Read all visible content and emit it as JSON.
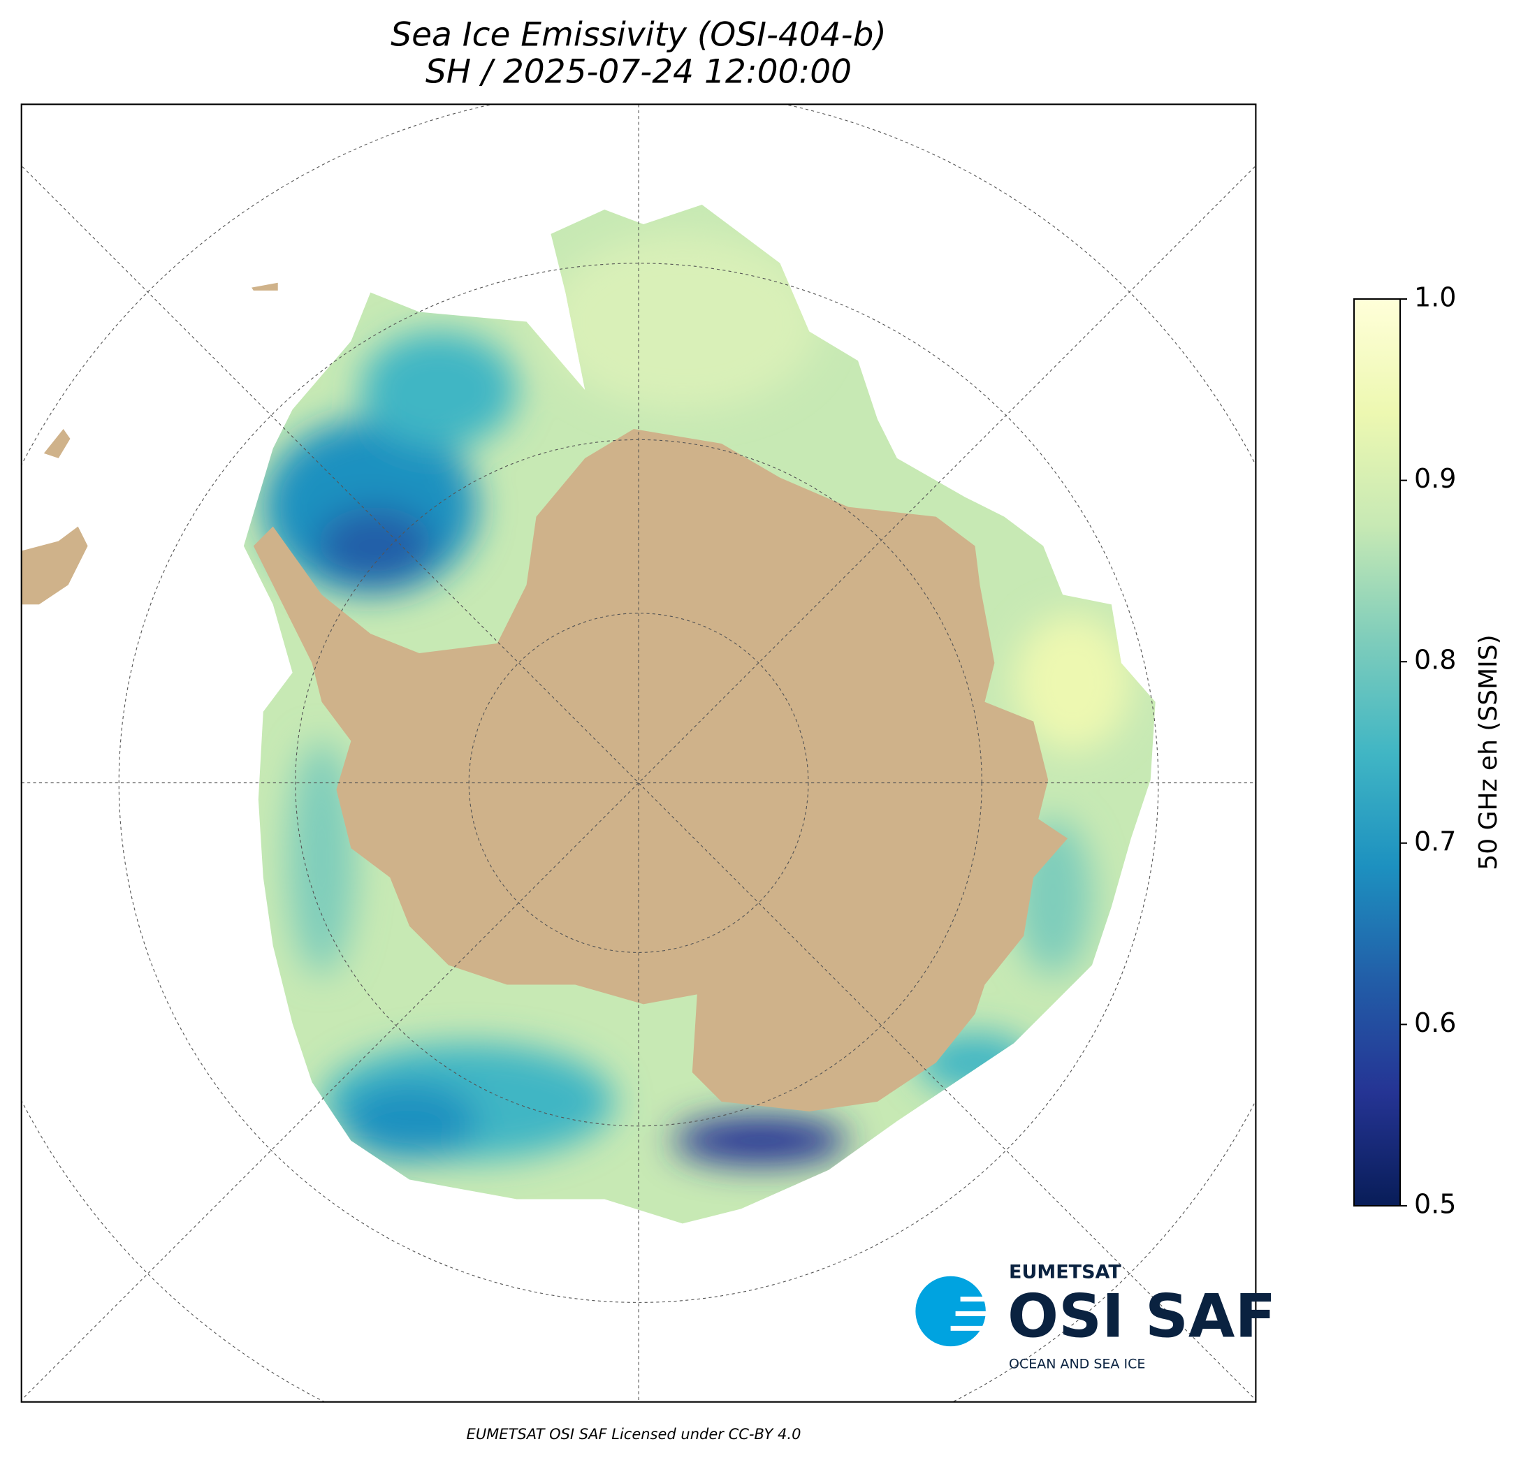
{
  "chart_data": {
    "type": "map",
    "title": "Sea Ice Emissivity (OSI-404-b)",
    "subtitle": "SH / 2025-07-24 12:00:00",
    "colorbar": {
      "label": "50 GHz eh (SSMIS)",
      "lim": [
        0.5,
        1.0
      ],
      "ticks": [
        0.5,
        0.6,
        0.7,
        0.8,
        0.9,
        {
          "value": 1.0,
          "label": "1.0"
        }
      ],
      "colormap": [
        "#081d58",
        "#253494",
        "#225ea8",
        "#1d91c0",
        "#41b6c4",
        "#7fcdbb",
        "#c7e9b4",
        "#edf8b1",
        "#ffffd9"
      ]
    },
    "credit": "EUMETSAT OSI SAF Licensed under CC-BY 4.0",
    "logo": {
      "org": "EUMETSAT",
      "name": "OSI SAF",
      "tagline": "OCEAN AND SEA ICE"
    }
  }
}
